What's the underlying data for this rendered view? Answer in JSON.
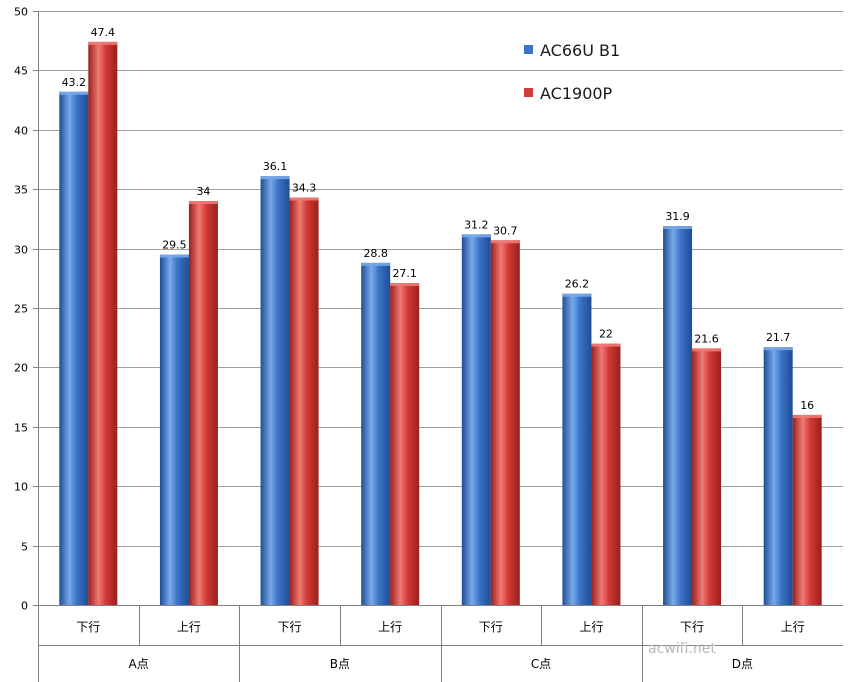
{
  "chart_data": {
    "type": "bar",
    "categories": [
      "下行",
      "上行",
      "下行",
      "上行",
      "下行",
      "上行",
      "下行",
      "上行"
    ],
    "groups": [
      "A点",
      "B点",
      "C点",
      "D点"
    ],
    "series": [
      {
        "name": "AC66U B1",
        "values": [
          43.2,
          29.5,
          36.1,
          28.8,
          31.2,
          26.2,
          31.9,
          21.7
        ]
      },
      {
        "name": "AC1900P",
        "values": [
          47.4,
          34,
          34.3,
          27.1,
          30.7,
          22,
          21.6,
          16
        ]
      }
    ],
    "ylim": [
      0,
      50
    ],
    "yticks": [
      "0",
      "5",
      "10",
      "15",
      "20",
      "25",
      "30",
      "35",
      "40",
      "45",
      "50"
    ],
    "grid": true,
    "legend_position": "top-right",
    "colors": {
      "series1": "#3b74c8",
      "series1_light": "#79a9ea",
      "series1_dark": "#1f4d94",
      "series2": "#d23a36",
      "series2_light": "#f07a74",
      "series2_dark": "#9a1f1c",
      "grid": "#a0a0a0"
    },
    "watermark": "acwifi.net"
  }
}
